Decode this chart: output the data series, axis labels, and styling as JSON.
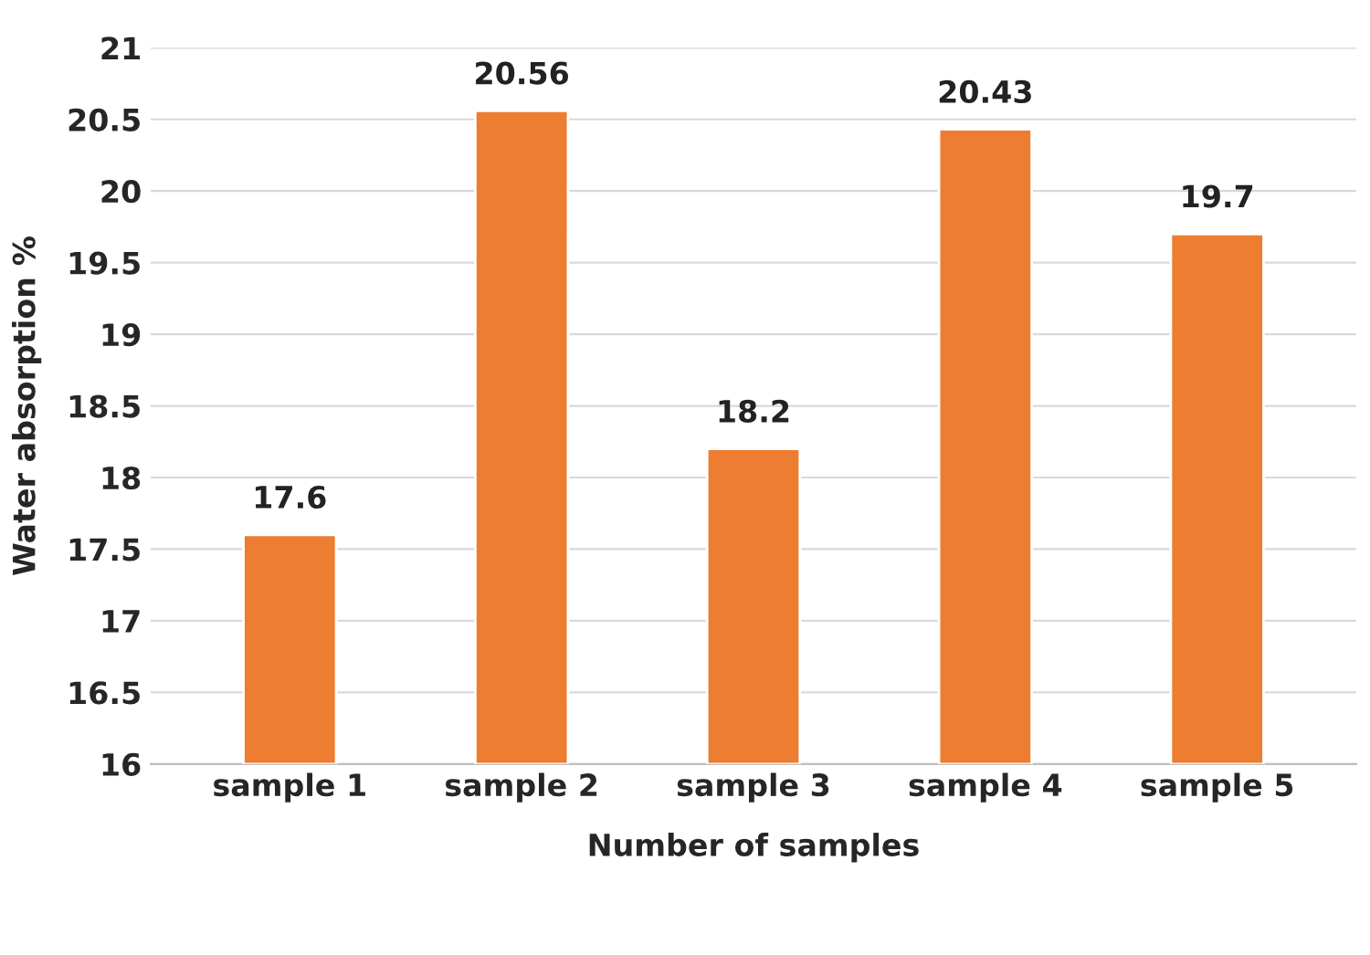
{
  "chart_data": {
    "type": "bar",
    "xlabel": "Number of samples",
    "ylabel": "Water absorption %",
    "categories": [
      "sample 1",
      "sample 2",
      "sample 3",
      "sample 4",
      "sample 5"
    ],
    "values": [
      17.6,
      20.56,
      18.2,
      20.43,
      19.7
    ],
    "color": "#ed7d31",
    "ylim": [
      16,
      21
    ],
    "yticks": [
      16,
      16.5,
      17,
      17.5,
      18,
      18.5,
      19,
      19.5,
      20,
      20.5,
      21
    ],
    "grid": "y",
    "data_labels": true
  }
}
